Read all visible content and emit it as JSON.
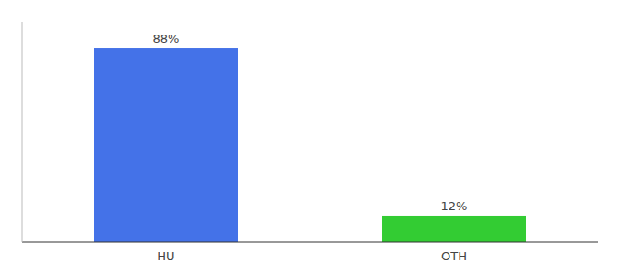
{
  "chart_data": {
    "type": "bar",
    "categories": [
      "HU",
      "OTH"
    ],
    "values": [
      88,
      12
    ],
    "value_labels": [
      "88%",
      "12%"
    ],
    "colors": [
      "#4472e8",
      "#33cc33"
    ],
    "ylim": [
      0,
      100
    ],
    "grid": false,
    "data_labels": true,
    "tick_labels": "x"
  }
}
